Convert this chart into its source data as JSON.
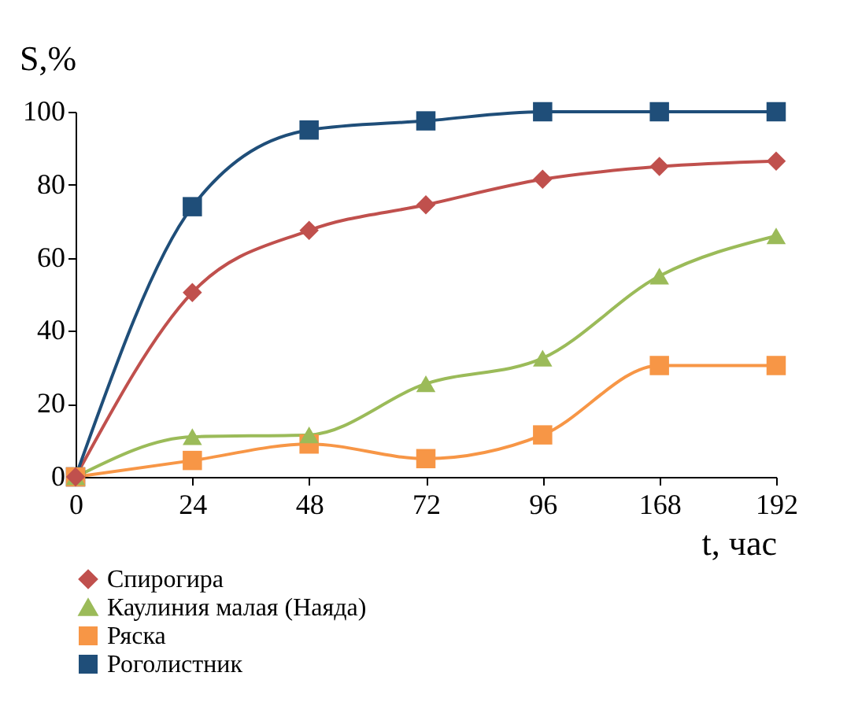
{
  "chart_data": {
    "type": "line",
    "xlabel": "t, час",
    "ylabel": "S,%",
    "categories": [
      "0",
      "24",
      "48",
      "72",
      "96",
      "168",
      "192"
    ],
    "ylim": [
      0,
      100
    ],
    "yticks": [
      0,
      20,
      40,
      60,
      80,
      100
    ],
    "grid": false,
    "legend": "bottom",
    "line_style": "solid",
    "series": [
      {
        "name": "Спирогира",
        "color": "#c0504d",
        "marker": "diamond",
        "values": [
          0,
          50.5,
          67.5,
          74.5,
          81.5,
          85,
          86.5
        ]
      },
      {
        "name": "Каулиния малая (Наяда)",
        "color": "#9bbb59",
        "marker": "triangle",
        "values": [
          0,
          11,
          11.5,
          25.5,
          32.5,
          55,
          66
        ]
      },
      {
        "name": "Ряска",
        "color": "#f79646",
        "marker": "square",
        "values": [
          0,
          4.5,
          9,
          5,
          11.5,
          30.5,
          30.5
        ]
      },
      {
        "name": "Роголистник",
        "color": "#1f4e79",
        "marker": "square",
        "values": [
          0,
          74,
          95,
          97.5,
          100,
          100,
          100
        ]
      }
    ]
  }
}
